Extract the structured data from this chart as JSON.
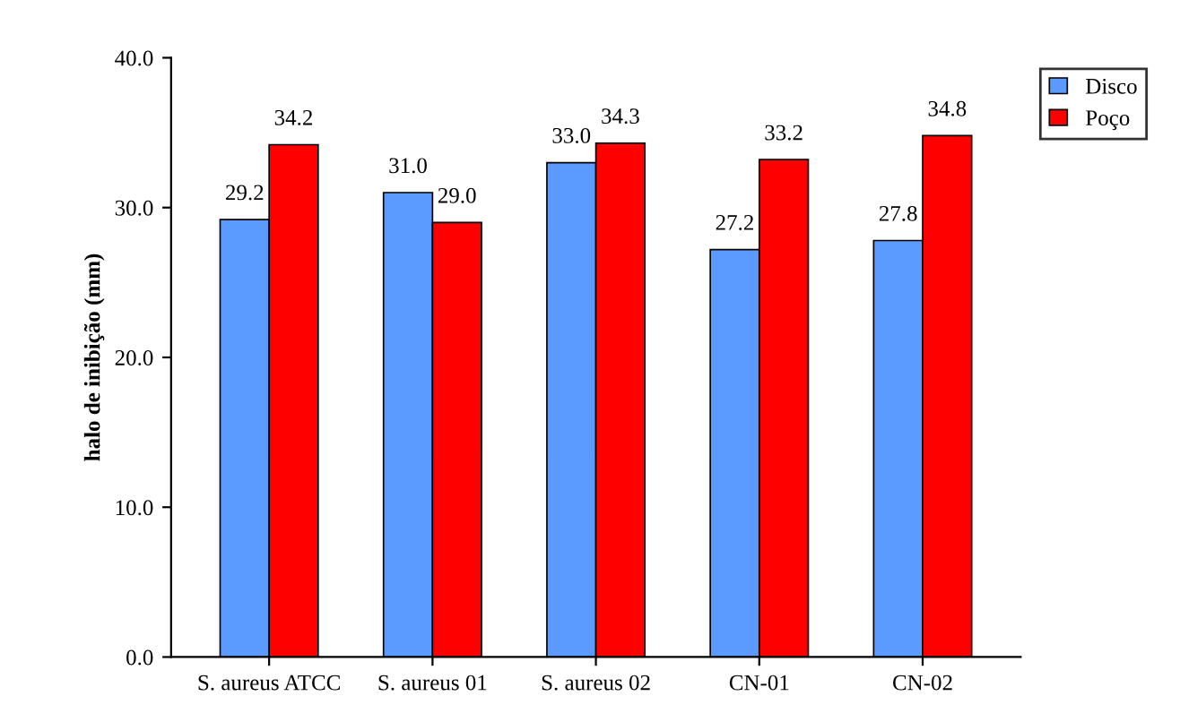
{
  "chart_data": {
    "type": "bar",
    "ylabel": "halo de inibição (mm)",
    "categories": [
      "S. aureus ATCC",
      "S. aureus 01",
      "S. aureus 02",
      "CN-01",
      "CN-02"
    ],
    "series": [
      {
        "name": "Disco",
        "color": "#5b9bff",
        "values": [
          29.2,
          31.0,
          33.0,
          27.2,
          27.8
        ],
        "value_labels": [
          "29.2",
          "31.0",
          "33.0",
          "27.2",
          "27.8"
        ]
      },
      {
        "name": "Poço",
        "color": "#ff0000",
        "values": [
          34.2,
          29.0,
          34.3,
          33.2,
          34.8
        ],
        "value_labels": [
          "34.2",
          "29.0",
          "34.3",
          "33.2",
          "34.8"
        ]
      }
    ],
    "ylim": [
      0,
      40
    ],
    "yticks": [
      {
        "value": 0,
        "label": "0.0"
      },
      {
        "value": 10,
        "label": "10.0"
      },
      {
        "value": 20,
        "label": "20.0"
      },
      {
        "value": 30,
        "label": "30.0"
      },
      {
        "value": 40,
        "label": "40.0"
      }
    ],
    "grid": false,
    "legend": "top right"
  }
}
